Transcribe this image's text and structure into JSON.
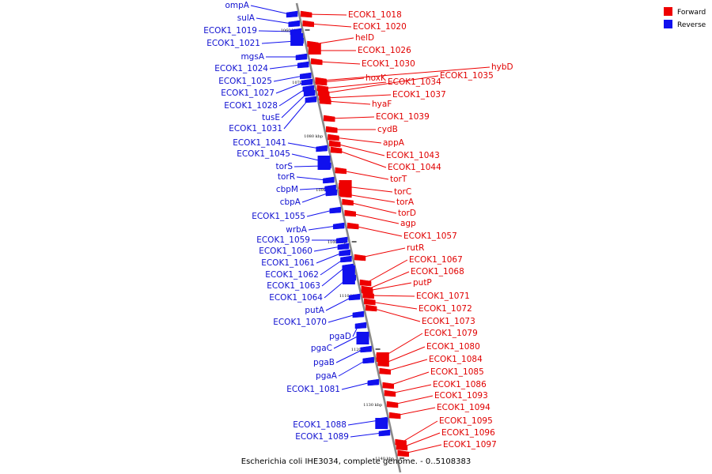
{
  "caption": "Escherichia coli IHE3034, complete genome. - 0..5108383",
  "legend": [
    {
      "label": "Forward",
      "color": "#ee0000"
    },
    {
      "label": "Reverse",
      "color": "#1010ee"
    }
  ],
  "colors": {
    "forward": "#ee0000",
    "reverse": "#1010ee",
    "backbone": "#999999"
  },
  "ticks": [
    "1060 kbp",
    "1070 kbp",
    "1080 kbp",
    "1090 kbp",
    "1100 kbp",
    "1110 kbp",
    "1120 kbp",
    "1130 kbp",
    "1140 kbp"
  ],
  "reverse_genes": [
    "ompA",
    "sulA",
    "ECOK1_1019",
    "ECOK1_1021",
    "mgsA",
    "ECOK1_1024",
    "ECOK1_1025",
    "ECOK1_1027",
    "ECOK1_1028",
    "tusE",
    "ECOK1_1031",
    "ECOK1_1041",
    "ECOK1_1045",
    "torS",
    "torR",
    "cbpM",
    "cbpA",
    "ECOK1_1055",
    "wrbA",
    "ECOK1_1059",
    "ECOK1_1060",
    "ECOK1_1061",
    "ECOK1_1062",
    "ECOK1_1063",
    "ECOK1_1064",
    "putA",
    "ECOK1_1070",
    "pgaD",
    "pgaC",
    "pgaB",
    "pgaA",
    "ECOK1_1081",
    "ECOK1_1088",
    "ECOK1_1089"
  ],
  "forward_genes": [
    "ECOK1_1018",
    "ECOK1_1020",
    "helD",
    "ECOK1_1026",
    "ECOK1_1030",
    "hybD",
    "hoxK",
    "ECOK1_1034",
    "ECOK1_1035",
    "ECOK1_1037",
    "hyaF",
    "ECOK1_1039",
    "cydB",
    "appA",
    "ECOK1_1043",
    "ECOK1_1044",
    "torT",
    "torC",
    "torA",
    "torD",
    "agp",
    "ECOK1_1057",
    "rutR",
    "ECOK1_1067",
    "ECOK1_1068",
    "putP",
    "ECOK1_1071",
    "ECOK1_1072",
    "ECOK1_1073",
    "ECOK1_1079",
    "ECOK1_1080",
    "ECOK1_1084",
    "ECOK1_1085",
    "ECOK1_1086",
    "ECOK1_1093",
    "ECOK1_1094",
    "ECOK1_1095",
    "ECOK1_1096",
    "ECOK1_1097"
  ]
}
